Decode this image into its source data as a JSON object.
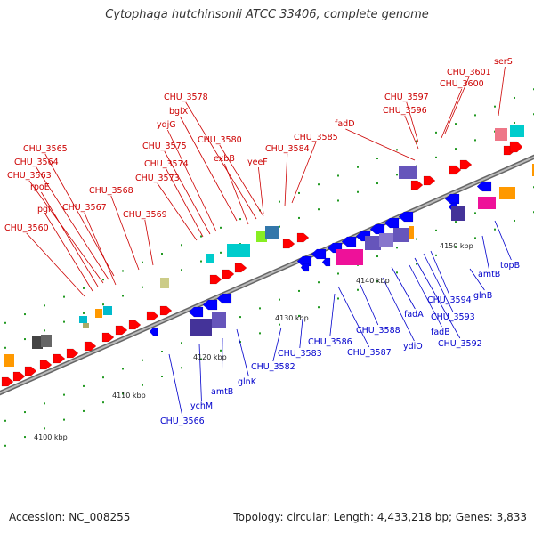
{
  "title": "Cytophaga hutchinsonii ATCC 33406, complete genome",
  "accession": "Accession: NC_008255",
  "stats": "Topology: circular; Length: 4,433,218 bp; Genes: 3,833",
  "kbp_ticks": [
    "4100 kbp",
    "4110 kbp",
    "4120 kbp",
    "4130 kbp",
    "4140 kbp",
    "4150 kbp"
  ],
  "colors": {
    "forward_label": "#cc0000",
    "reverse_label": "#0000cc",
    "backbone": "#888888",
    "forward_gene": "#ff0000",
    "reverse_gene": "#0000ff",
    "tick": "#229922"
  },
  "forward_labels": [
    "CHU_3560",
    "pgl",
    "rpoE",
    "CHU_3563",
    "CHU_3564",
    "CHU_3565",
    "CHU_3567",
    "CHU_3568",
    "CHU_3569",
    "CHU_3573",
    "CHU_3574",
    "CHU_3575",
    "ydjG",
    "bglX",
    "CHU_3578",
    "exbB",
    "CHU_3580",
    "yeeF",
    "CHU_3584",
    "CHU_3585",
    "fadD",
    "CHU_3596",
    "CHU_3597",
    "CHU_3600",
    "CHU_3601",
    "serS"
  ],
  "reverse_labels": [
    "CHU_3566",
    "ychM",
    "amtB",
    "glnK",
    "CHU_3582",
    "CHU_3583",
    "CHU_3586",
    "CHU_3587",
    "CHU_3588",
    "ydiO",
    "fadA",
    "fadB",
    "CHU_3592",
    "CHU_3593",
    "CHU_3594",
    "glnB",
    "amtB",
    "topB"
  ]
}
